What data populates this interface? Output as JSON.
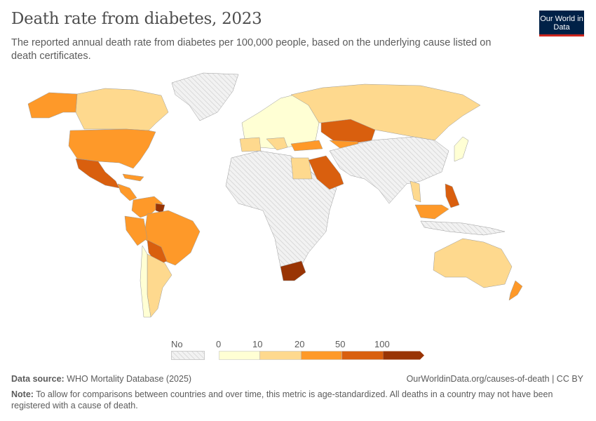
{
  "header": {
    "title": "Death rate from diabetes, 2023",
    "subtitle": "The reported annual death rate from diabetes per 100,000 people, based on the underlying cause listed on death certificates.",
    "logo_text": "Our World in Data"
  },
  "map": {
    "colors": {
      "no_data": "#e6e6e6",
      "0-10": "#ffffd4",
      "10-20": "#fed98e",
      "20-50": "#fe9929",
      "50-100": "#d95f0e",
      "100+": "#993404"
    }
  },
  "legend": {
    "no_data_label": "No data",
    "ticks": [
      "0",
      "10",
      "20",
      "50",
      "100"
    ],
    "bins": [
      {
        "range": "0-10",
        "color": "#ffffd4"
      },
      {
        "range": "10-20",
        "color": "#fed98e"
      },
      {
        "range": "20-50",
        "color": "#fe9929"
      },
      {
        "range": "50-100",
        "color": "#d95f0e"
      },
      {
        "range": "100+",
        "color": "#993404"
      }
    ]
  },
  "footer": {
    "source_label": "Data source:",
    "source": "WHO Mortality Database (2025)",
    "url_license": "OurWorldinData.org/causes-of-death | CC BY",
    "note_label": "Note:",
    "note": "To allow for comparisons between countries and over time, this metric is age-standardized. All deaths in a country may not have been registered with a cause of death."
  }
}
